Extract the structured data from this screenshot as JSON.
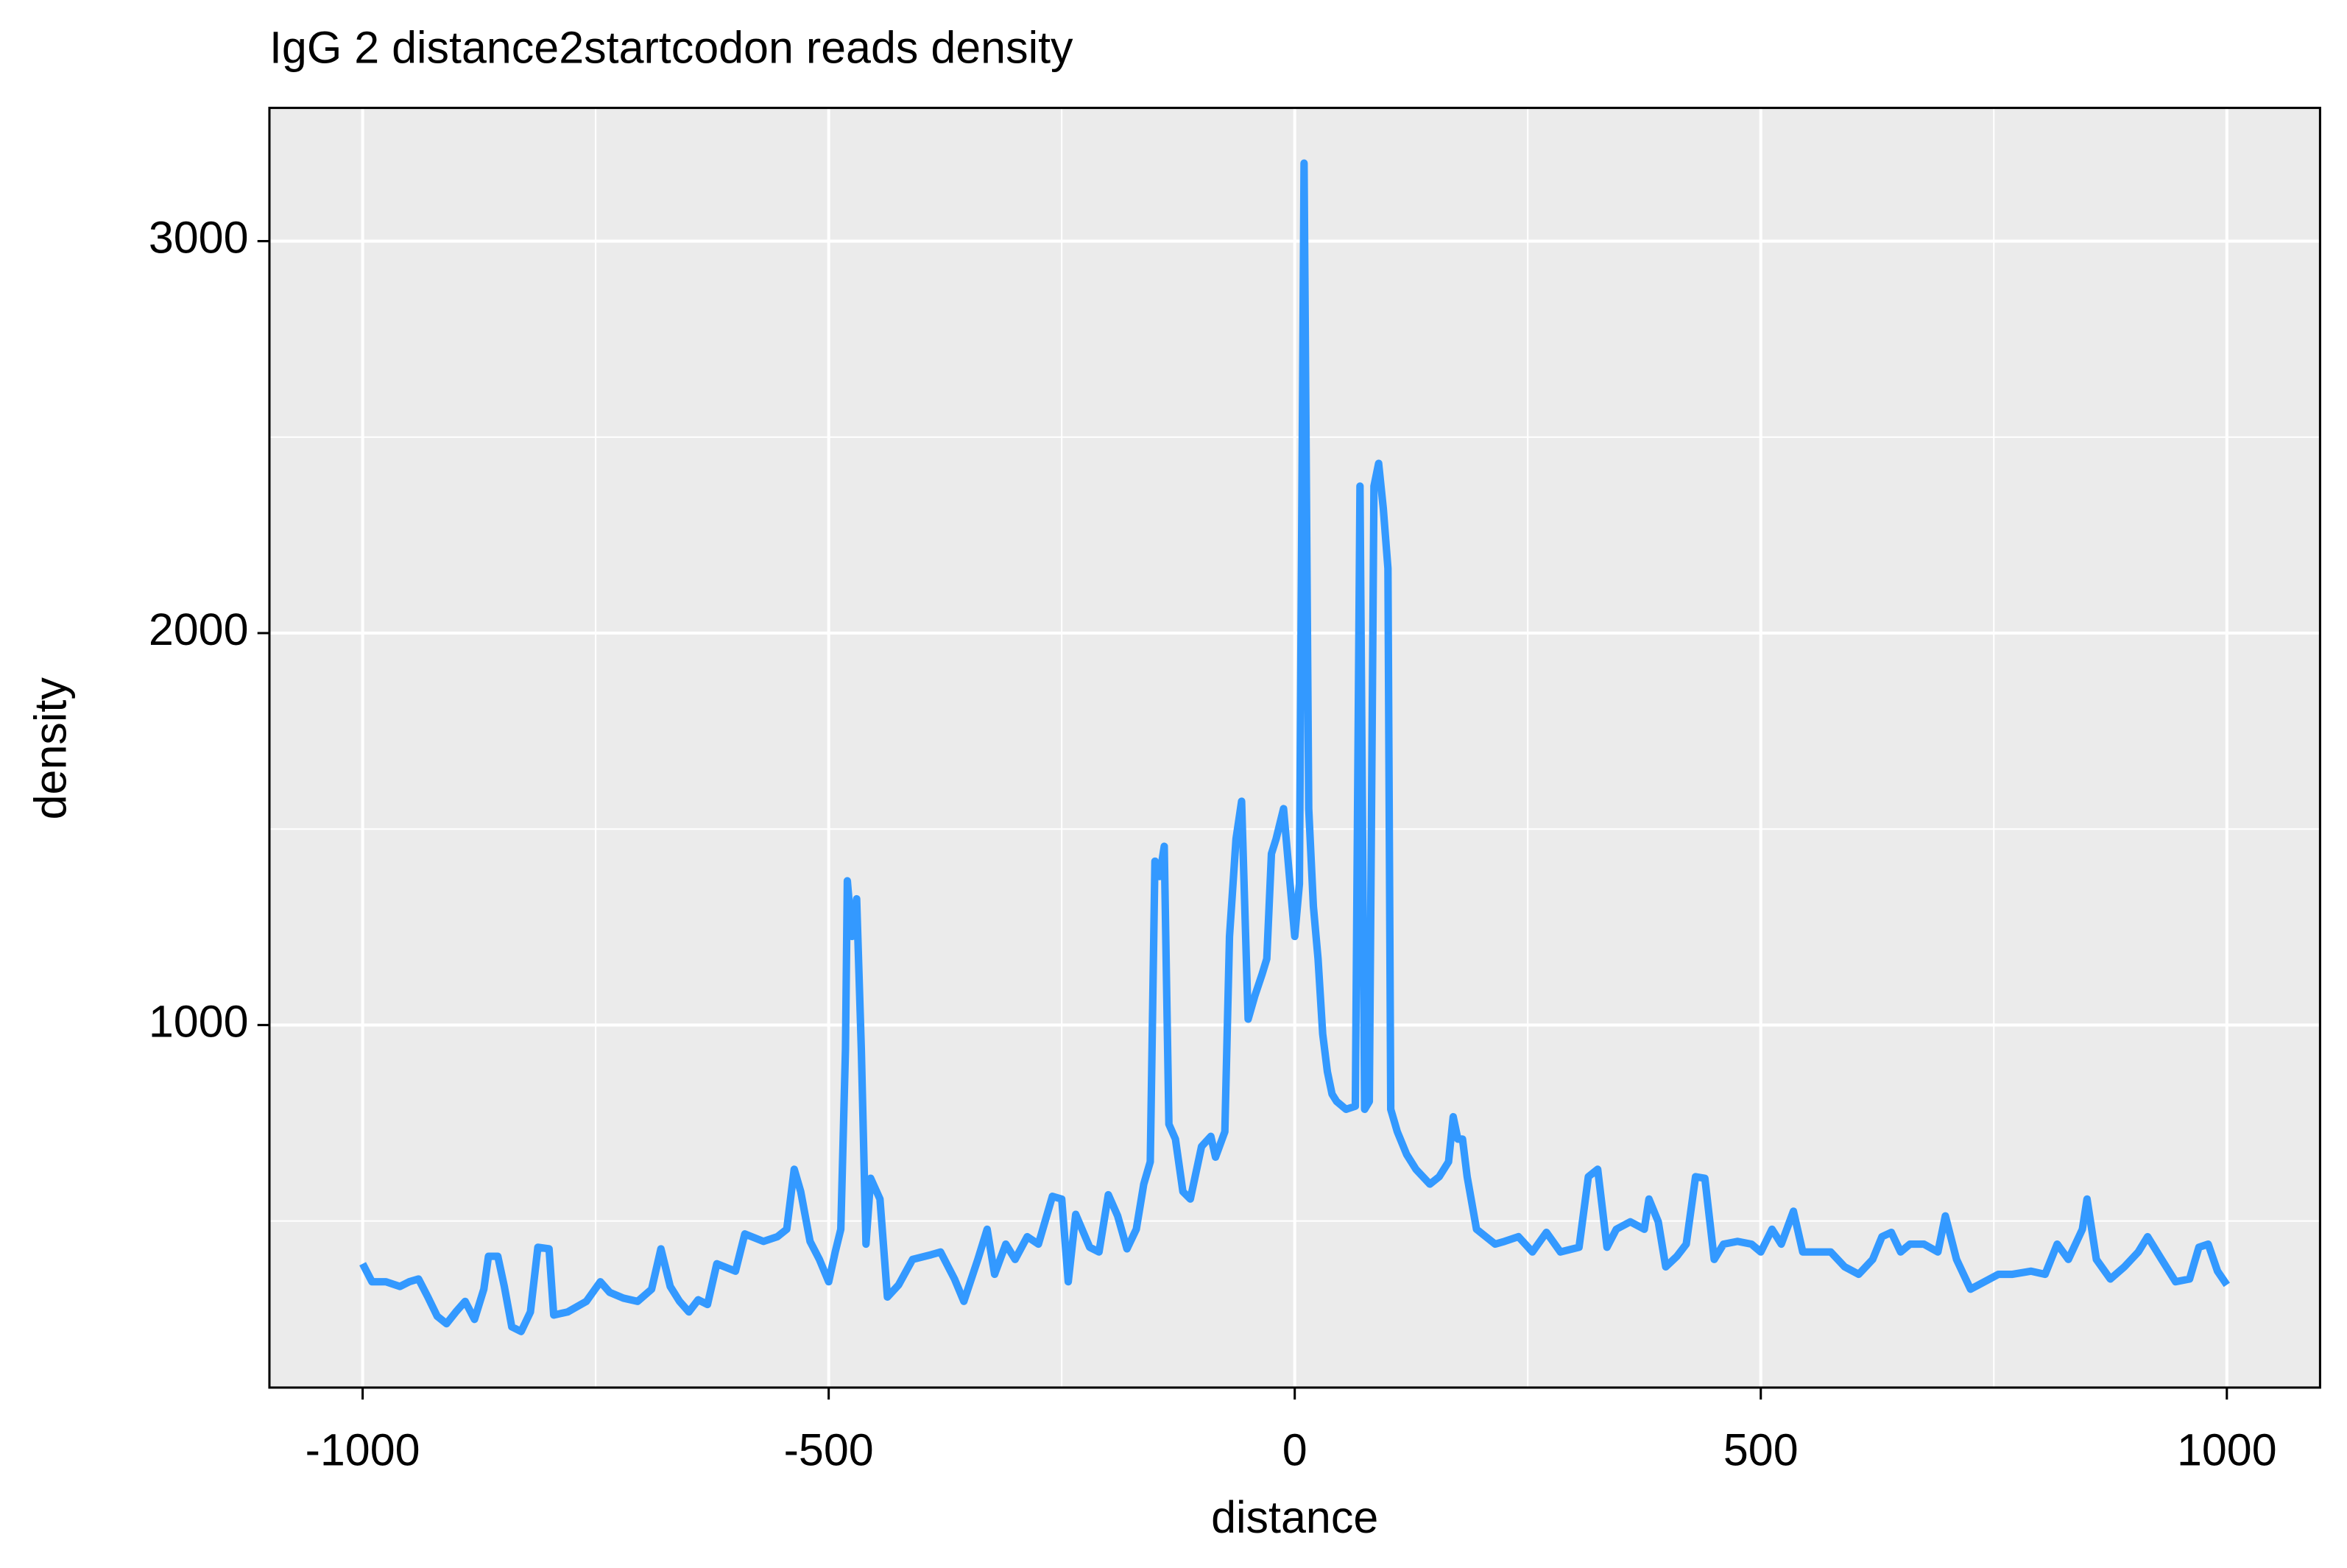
{
  "chart_data": {
    "type": "line",
    "title": "IgG 2 distance2startcodon reads density",
    "x_label": "distance",
    "y_label": "density",
    "color": "#3399ff",
    "grid": true,
    "background": "#ebebeb",
    "x": [
      -1000,
      -990,
      -975,
      -960,
      -950,
      -940,
      -930,
      -920,
      -910,
      -900,
      -890,
      -880,
      -870,
      -865,
      -855,
      -848,
      -840,
      -830,
      -820,
      -812,
      -800,
      -795,
      -780,
      -760,
      -745,
      -735,
      -720,
      -705,
      -690,
      -680,
      -670,
      -660,
      -650,
      -640,
      -630,
      -620,
      -600,
      -590,
      -570,
      -555,
      -545,
      -537,
      -530,
      -520,
      -510,
      -500,
      -493,
      -487,
      -482,
      -480,
      -475,
      -470,
      -465,
      -460,
      -455,
      -445,
      -437,
      -425,
      -410,
      -390,
      -380,
      -365,
      -355,
      -340,
      -330,
      -322,
      -310,
      -300,
      -287,
      -275,
      -260,
      -250,
      -243,
      -235,
      -220,
      -210,
      -200,
      -190,
      -180,
      -170,
      -162,
      -155,
      -150,
      -145,
      -140,
      -135,
      -128,
      -120,
      -112,
      -100,
      -90,
      -85,
      -75,
      -70,
      -63,
      -57,
      -50,
      -43,
      -35,
      -30,
      -25,
      -20,
      -12,
      -5,
      0,
      5,
      10,
      15,
      20,
      25,
      30,
      35,
      40,
      45,
      55,
      65,
      70,
      75,
      80,
      85,
      90,
      95,
      100,
      103,
      110,
      120,
      130,
      145,
      155,
      165,
      170,
      175,
      180,
      185,
      195,
      205,
      215,
      225,
      240,
      255,
      270,
      285,
      305,
      315,
      325,
      335,
      345,
      360,
      375,
      380,
      390,
      398,
      410,
      420,
      430,
      440,
      450,
      460,
      475,
      490,
      500,
      512,
      522,
      535,
      545,
      560,
      575,
      590,
      605,
      620,
      630,
      640,
      650,
      660,
      675,
      690,
      698,
      710,
      725,
      740,
      755,
      770,
      790,
      805,
      818,
      830,
      845,
      850,
      860,
      875,
      890,
      905,
      915,
      930,
      945,
      960,
      970,
      980,
      990,
      1000
    ],
    "values": [
      391,
      345,
      345,
      333,
      345,
      352,
      306,
      257,
      238,
      268,
      295,
      249,
      326,
      410,
      410,
      333,
      230,
      218,
      268,
      433,
      429,
      260,
      268,
      295,
      345,
      318,
      303,
      295,
      326,
      429,
      333,
      295,
      268,
      299,
      287,
      391,
      372,
      467,
      448,
      460,
      479,
      632,
      575,
      448,
      402,
      345,
      421,
      479,
      939,
      1368,
      1226,
      1322,
      939,
      441,
      609,
      556,
      306,
      337,
      402,
      414,
      421,
      352,
      295,
      402,
      479,
      364,
      441,
      402,
      460,
      441,
      563,
      556,
      345,
      517,
      433,
      421,
      567,
      513,
      429,
      479,
      594,
      651,
      1418,
      1379,
      1456,
      747,
      709,
      575,
      556,
      690,
      716,
      663,
      728,
      1226,
      1475,
      1571,
      1015,
      1073,
      1130,
      1169,
      1437,
      1475,
      1552,
      1360,
      1226,
      1360,
      3199,
      1552,
      1303,
      1169,
      977,
      881,
      824,
      805,
      785,
      793,
      2375,
      785,
      805,
      2375,
      2433,
      2318,
      2165,
      785,
      728,
      670,
      632,
      594,
      613,
      651,
      766,
      709,
      709,
      613,
      479,
      460,
      441,
      448,
      460,
      421,
      471,
      421,
      433,
      613,
      632,
      433,
      479,
      498,
      479,
      556,
      498,
      383,
      410,
      441,
      613,
      609,
      402,
      441,
      448,
      441,
      421,
      479,
      441,
      525,
      421,
      421,
      421,
      383,
      364,
      402,
      460,
      471,
      421,
      441,
      441,
      421,
      513,
      402,
      326,
      345,
      364,
      364,
      372,
      364,
      441,
      402,
      479,
      556,
      402,
      352,
      383,
      421,
      460,
      402,
      345,
      352,
      433,
      441,
      372,
      337
    ],
    "xlim": [
      -1100,
      1100
    ],
    "xticks": [
      -1000,
      -500,
      0,
      500,
      1000
    ],
    "xminor": [
      -750,
      -250,
      250,
      750
    ],
    "ylim": [
      75,
      3340
    ],
    "yticks": [
      1000,
      2000,
      3000
    ],
    "yminor": [
      500,
      1500,
      2500
    ]
  }
}
